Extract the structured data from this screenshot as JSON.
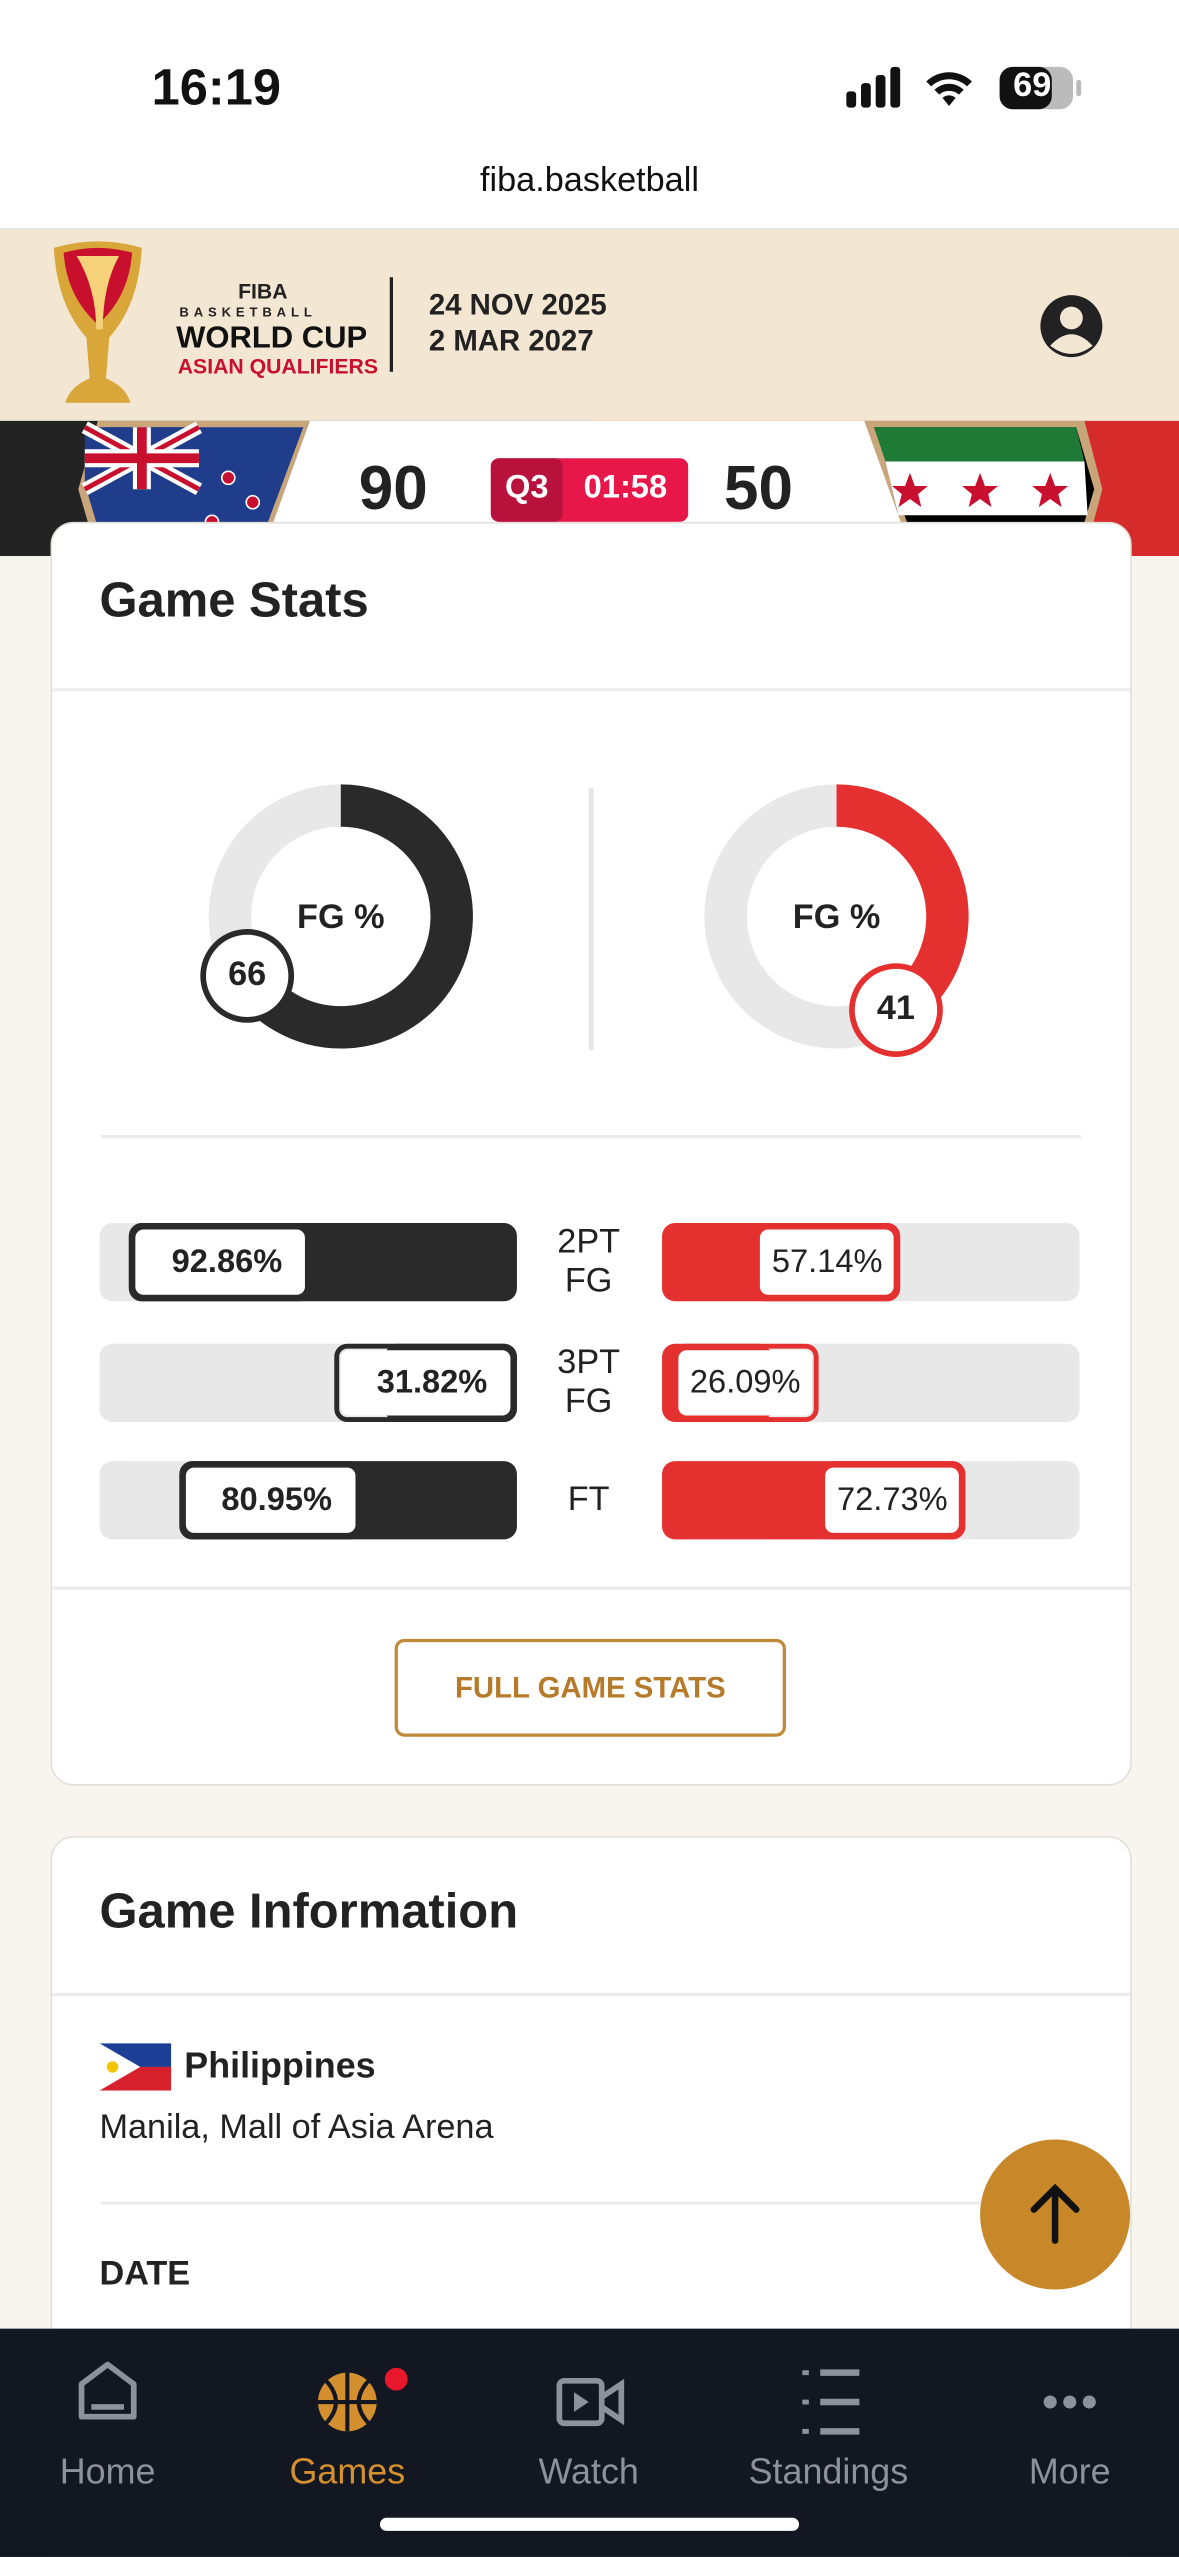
{
  "status": {
    "time": "16:19",
    "battery": "69"
  },
  "url": "fiba.basketball",
  "header": {
    "logo": {
      "org": "FIBA",
      "line1": "BASKETBALL",
      "line2": "WORLD CUP",
      "line3": "ASIAN QUALIFIERS"
    },
    "dates": [
      "24 NOV 2025",
      "2 MAR 2027"
    ]
  },
  "score": {
    "home": "90",
    "away": "50",
    "period": "Q3",
    "clock": "01:58"
  },
  "game_stats": {
    "title": "Game Stats",
    "fg": {
      "label": "FG %",
      "home": 66,
      "away": 41
    },
    "rows": [
      {
        "name": [
          "2PT",
          "FG"
        ],
        "home": {
          "value": 92.86,
          "label": "92.86%"
        },
        "away": {
          "value": 57.14,
          "label": "57.14%"
        }
      },
      {
        "name": [
          "3PT",
          "FG"
        ],
        "home": {
          "value": 31.82,
          "label": "31.82%"
        },
        "away": {
          "value": 26.09,
          "label": "26.09%"
        }
      },
      {
        "name": [
          "FT"
        ],
        "home": {
          "value": 80.95,
          "label": "80.95%"
        },
        "away": {
          "value": 72.73,
          "label": "72.73%"
        }
      }
    ],
    "button": "FULL GAME STATS"
  },
  "game_info": {
    "title": "Game Information",
    "country": "Philippines",
    "venue": "Manila, Mall of Asia Arena",
    "date_label": "DATE"
  },
  "nav": [
    "Home",
    "Games",
    "Watch",
    "Standings",
    "More"
  ]
}
